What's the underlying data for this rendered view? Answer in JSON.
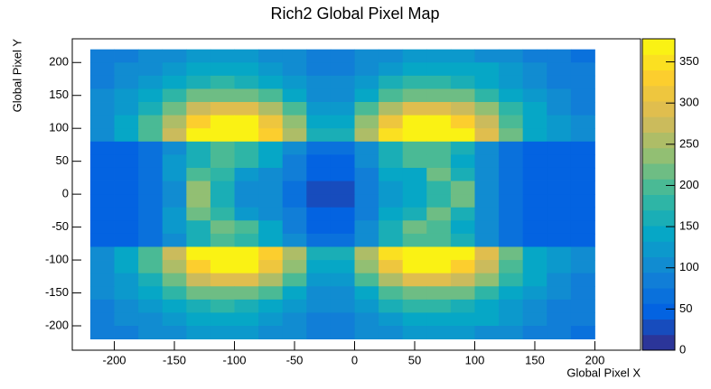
{
  "chart_data": {
    "type": "heatmap",
    "title": "Rich2 Global Pixel Map",
    "x_label": "Global Pixel X",
    "y_label": "Global Pixel Y",
    "xlim": [
      -235,
      238
    ],
    "ylim": [
      -237,
      236
    ],
    "xticks": [
      -200,
      -150,
      -100,
      -50,
      0,
      50,
      100,
      150,
      200
    ],
    "yticks": [
      -200,
      -150,
      -100,
      -50,
      0,
      50,
      100,
      150,
      200
    ],
    "zlim": [
      0,
      378
    ],
    "zticks": [
      0,
      50,
      100,
      150,
      200,
      250,
      300,
      350
    ],
    "palette": [
      "#352a87",
      "#0363e1",
      "#1485d4",
      "#06a7c6",
      "#38b99e",
      "#92bf73",
      "#d9ba56",
      "#fcce2e",
      "#f9fb0e"
    ],
    "xbins": [
      -220,
      -200,
      -180,
      -160,
      -140,
      -120,
      -100,
      -80,
      -60,
      -40,
      -20,
      0,
      20,
      40,
      60,
      80,
      100,
      120,
      140,
      160,
      180,
      200
    ],
    "ybins": [
      220,
      200,
      180,
      160,
      140,
      120,
      100,
      80,
      60,
      40,
      20,
      0,
      -20,
      -40,
      -60,
      -80,
      -100,
      -120,
      -140,
      -160,
      -180,
      -200,
      -220
    ],
    "z": [
      [
        80,
        90,
        100,
        110,
        120,
        120,
        120,
        110,
        100,
        80,
        80,
        100,
        110,
        120,
        120,
        120,
        110,
        100,
        90,
        80,
        70
      ],
      [
        90,
        100,
        110,
        130,
        140,
        150,
        140,
        130,
        110,
        90,
        90,
        110,
        130,
        140,
        150,
        150,
        140,
        120,
        100,
        90,
        80
      ],
      [
        90,
        110,
        130,
        150,
        170,
        180,
        170,
        150,
        130,
        100,
        100,
        130,
        160,
        180,
        180,
        170,
        150,
        130,
        110,
        90,
        80
      ],
      [
        100,
        120,
        150,
        180,
        210,
        220,
        210,
        190,
        150,
        110,
        110,
        150,
        190,
        220,
        220,
        210,
        180,
        150,
        120,
        100,
        90
      ],
      [
        110,
        130,
        170,
        220,
        270,
        300,
        290,
        250,
        190,
        130,
        130,
        190,
        260,
        300,
        300,
        280,
        230,
        180,
        140,
        110,
        90
      ],
      [
        110,
        140,
        190,
        260,
        330,
        370,
        360,
        310,
        230,
        150,
        150,
        230,
        320,
        370,
        370,
        340,
        270,
        200,
        150,
        120,
        100
      ],
      [
        110,
        140,
        200,
        280,
        360,
        378,
        378,
        340,
        250,
        160,
        160,
        250,
        350,
        378,
        378,
        360,
        290,
        210,
        150,
        120,
        100
      ],
      [
        40,
        40,
        60,
        110,
        160,
        190,
        180,
        150,
        100,
        60,
        60,
        110,
        160,
        190,
        190,
        160,
        110,
        70,
        50,
        40,
        40
      ],
      [
        40,
        40,
        60,
        120,
        170,
        200,
        180,
        140,
        90,
        50,
        50,
        100,
        160,
        200,
        190,
        150,
        100,
        60,
        50,
        40,
        40
      ],
      [
        40,
        40,
        60,
        120,
        200,
        180,
        130,
        110,
        80,
        40,
        40,
        90,
        140,
        150,
        210,
        170,
        100,
        60,
        50,
        40,
        40
      ],
      [
        40,
        40,
        60,
        110,
        230,
        160,
        110,
        100,
        70,
        30,
        30,
        80,
        120,
        140,
        180,
        220,
        100,
        60,
        50,
        40,
        40
      ],
      [
        40,
        40,
        60,
        110,
        230,
        160,
        110,
        100,
        70,
        30,
        30,
        80,
        120,
        140,
        180,
        220,
        100,
        60,
        50,
        40,
        40
      ],
      [
        40,
        40,
        60,
        120,
        210,
        180,
        130,
        110,
        80,
        40,
        40,
        90,
        140,
        160,
        220,
        170,
        100,
        60,
        50,
        40,
        40
      ],
      [
        40,
        40,
        60,
        120,
        170,
        210,
        190,
        140,
        90,
        50,
        50,
        100,
        170,
        210,
        190,
        150,
        100,
        60,
        50,
        40,
        40
      ],
      [
        40,
        40,
        60,
        110,
        160,
        190,
        180,
        150,
        100,
        60,
        60,
        110,
        160,
        190,
        190,
        160,
        110,
        70,
        50,
        40,
        40
      ],
      [
        110,
        140,
        200,
        280,
        360,
        378,
        378,
        340,
        250,
        160,
        160,
        250,
        350,
        378,
        378,
        360,
        290,
        210,
        150,
        120,
        100
      ],
      [
        110,
        140,
        190,
        260,
        330,
        370,
        360,
        310,
        230,
        150,
        150,
        230,
        320,
        370,
        370,
        340,
        270,
        200,
        150,
        120,
        100
      ],
      [
        110,
        130,
        170,
        220,
        270,
        300,
        290,
        250,
        190,
        130,
        130,
        190,
        260,
        300,
        300,
        280,
        230,
        180,
        140,
        110,
        90
      ],
      [
        100,
        120,
        150,
        180,
        210,
        220,
        210,
        190,
        150,
        110,
        110,
        150,
        190,
        220,
        220,
        210,
        180,
        150,
        120,
        100,
        90
      ],
      [
        90,
        110,
        130,
        150,
        170,
        180,
        170,
        150,
        130,
        100,
        100,
        130,
        160,
        180,
        180,
        170,
        150,
        130,
        110,
        90,
        80
      ],
      [
        90,
        100,
        110,
        130,
        140,
        150,
        140,
        130,
        110,
        90,
        90,
        110,
        130,
        140,
        150,
        150,
        140,
        120,
        100,
        90,
        80
      ],
      [
        80,
        90,
        100,
        110,
        120,
        120,
        120,
        110,
        100,
        80,
        80,
        100,
        110,
        120,
        120,
        120,
        110,
        100,
        90,
        80,
        70
      ]
    ]
  }
}
